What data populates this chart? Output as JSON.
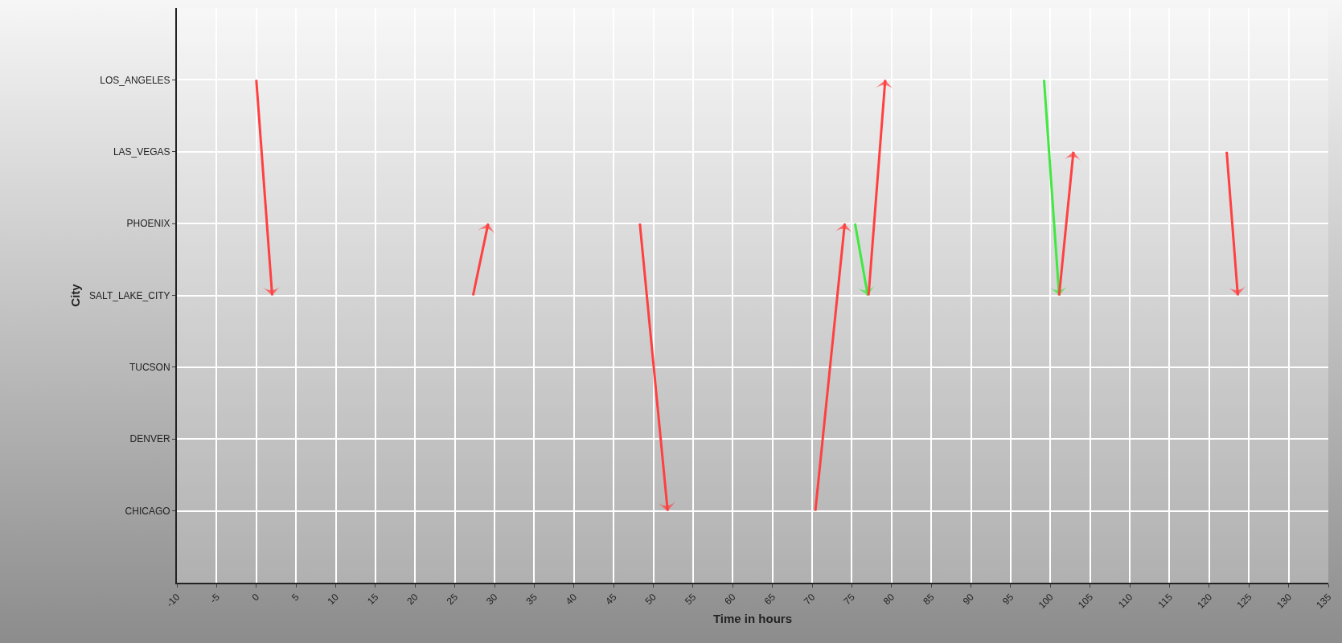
{
  "chart_data": {
    "type": "line",
    "orientation": "horizontal",
    "xlabel": "Time in hours",
    "ylabel": "City",
    "xlim": [
      -10,
      135
    ],
    "xticks": [
      -10,
      -5,
      0,
      5,
      10,
      15,
      20,
      25,
      30,
      35,
      40,
      45,
      50,
      55,
      60,
      65,
      70,
      75,
      80,
      85,
      90,
      95,
      100,
      105,
      110,
      115,
      120,
      125,
      130,
      135
    ],
    "categories": [
      "LOS_ANGELES",
      "LAS_VEGAS",
      "PHOENIX",
      "SALT_LAKE_CITY",
      "TUCSON",
      "DENVER",
      "CHICAGO"
    ],
    "grid": true,
    "series": [
      {
        "color": "#ff4040",
        "values": [
          0,
          null,
          null,
          2,
          null,
          null,
          null
        ]
      },
      {
        "color": "#ff4040",
        "values": [
          null,
          null,
          29.2,
          27.3,
          null,
          null,
          null
        ]
      },
      {
        "color": "#ff4040",
        "values": [
          null,
          null,
          48.3,
          null,
          null,
          null,
          51.8
        ]
      },
      {
        "color": "#ff4040",
        "values": [
          null,
          null,
          74.1,
          null,
          null,
          null,
          70.4
        ]
      },
      {
        "color": "#40e840",
        "values": [
          null,
          null,
          75.4,
          77,
          null,
          null,
          null
        ]
      },
      {
        "color": "#ff4040",
        "values": [
          79.2,
          null,
          null,
          77.1,
          null,
          null,
          null
        ]
      },
      {
        "color": "#40e840",
        "values": [
          99.2,
          null,
          null,
          101.1,
          null,
          null,
          null
        ]
      },
      {
        "color": "#ff4040",
        "values": [
          null,
          102.9,
          null,
          101.1,
          null,
          null,
          null
        ]
      },
      {
        "color": "#ff4040",
        "values": [
          null,
          122.2,
          null,
          123.6,
          null,
          null,
          null
        ]
      }
    ]
  }
}
